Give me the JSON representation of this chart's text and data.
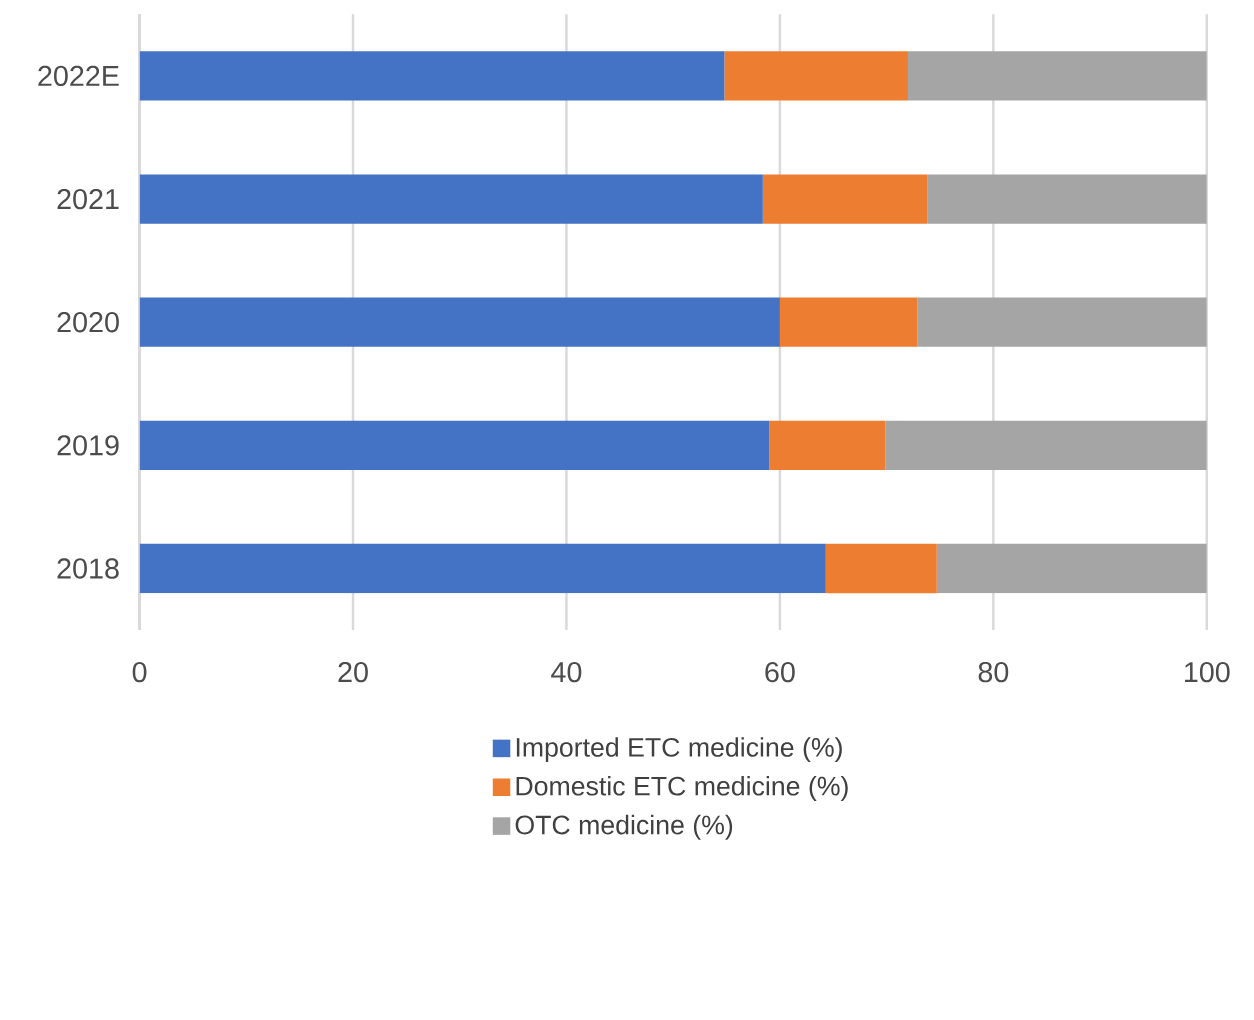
{
  "chart_data": {
    "type": "bar",
    "orientation": "horizontal",
    "stacked": true,
    "categories": [
      "2022E",
      "2021",
      "2020",
      "2019",
      "2018"
    ],
    "series": [
      {
        "name": "Imported ETC medicine (%)",
        "color": "#4472c4",
        "values": [
          54.8,
          58.4,
          60.0,
          59.0,
          64.3
        ]
      },
      {
        "name": "Domestic ETC medicine (%)",
        "color": "#ed7d31",
        "values": [
          17.2,
          15.4,
          12.9,
          10.9,
          10.4
        ]
      },
      {
        "name": "OTC medicine (%)",
        "color": "#a5a5a5",
        "values": [
          28.0,
          26.2,
          27.1,
          30.1,
          25.3
        ]
      }
    ],
    "xlim": [
      0,
      100
    ],
    "xticks": [
      0,
      20,
      40,
      60,
      80,
      100
    ],
    "grid": "x",
    "legend": "bottom"
  }
}
